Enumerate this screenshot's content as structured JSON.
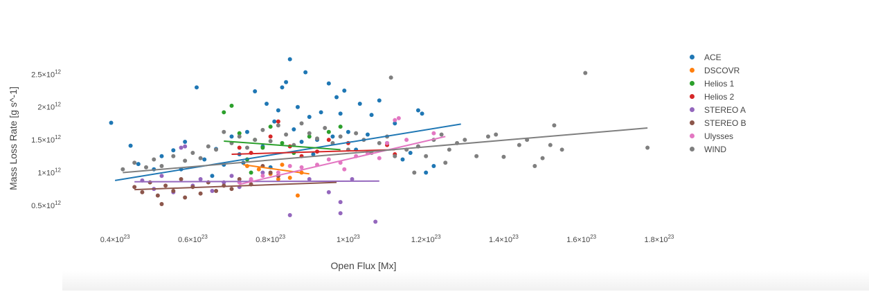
{
  "chart_data": {
    "type": "scatter",
    "xlabel": "Open Flux [Mx]",
    "ylabel": "Mass Loss Rate [g s^-1]",
    "xlim": [
      0.3,
      1.85
    ],
    "ylim": [
      0.15,
      3.0
    ],
    "x_ticks": [
      {
        "value": 0.4,
        "mantissa": "0.4",
        "label": "0.4×10^23"
      },
      {
        "value": 0.6,
        "mantissa": "0.6",
        "label": "0.6×10^23"
      },
      {
        "value": 0.8,
        "mantissa": "0.8",
        "label": "0.8×10^23"
      },
      {
        "value": 1.0,
        "mantissa": "1",
        "label": "1×10^23"
      },
      {
        "value": 1.2,
        "mantissa": "1.2",
        "label": "1.2×10^23"
      },
      {
        "value": 1.4,
        "mantissa": "1.4",
        "label": "1.4×10^23"
      },
      {
        "value": 1.6,
        "mantissa": "1.6",
        "label": "1.6×10^23"
      },
      {
        "value": 1.8,
        "mantissa": "1.8",
        "label": "1.8×10^23"
      }
    ],
    "x_exponent": "23",
    "y_ticks": [
      {
        "value": 0.5,
        "mantissa": "0.5",
        "label": "0.5×10^12"
      },
      {
        "value": 1.0,
        "mantissa": "1",
        "label": "1×10^12"
      },
      {
        "value": 1.5,
        "mantissa": "1.5",
        "label": "1.5×10^12"
      },
      {
        "value": 2.0,
        "mantissa": "2",
        "label": "2×10^12"
      },
      {
        "value": 2.5,
        "mantissa": "2.5",
        "label": "2.5×10^12"
      }
    ],
    "y_exponent": "12",
    "series": [
      {
        "name": "ACE",
        "color": "#1f77b4",
        "fit": [
          [
            0.4,
            0.88
          ],
          [
            1.29,
            1.74
          ]
        ],
        "points": [
          [
            0.39,
            1.76
          ],
          [
            0.44,
            1.41
          ],
          [
            0.46,
            1.13
          ],
          [
            0.5,
            1.05
          ],
          [
            0.52,
            1.25
          ],
          [
            0.55,
            1.34
          ],
          [
            0.58,
            1.47
          ],
          [
            0.61,
            2.3
          ],
          [
            0.63,
            1.2
          ],
          [
            0.66,
            1.36
          ],
          [
            0.68,
            1.12
          ],
          [
            0.7,
            1.55
          ],
          [
            0.72,
            1.28
          ],
          [
            0.74,
            1.62
          ],
          [
            0.76,
            2.24
          ],
          [
            0.78,
            1.4
          ],
          [
            0.79,
            2.05
          ],
          [
            0.81,
            1.78
          ],
          [
            0.82,
            1.95
          ],
          [
            0.83,
            2.3
          ],
          [
            0.84,
            2.38
          ],
          [
            0.85,
            2.73
          ],
          [
            0.86,
            1.66
          ],
          [
            0.87,
            2.0
          ],
          [
            0.88,
            1.47
          ],
          [
            0.89,
            2.53
          ],
          [
            0.9,
            1.85
          ],
          [
            0.91,
            1.28
          ],
          [
            0.93,
            1.92
          ],
          [
            0.95,
            2.36
          ],
          [
            0.96,
            1.55
          ],
          [
            0.97,
            2.15
          ],
          [
            0.98,
            1.9
          ],
          [
            0.99,
            2.25
          ],
          [
            1.0,
            1.62
          ],
          [
            1.02,
            1.35
          ],
          [
            1.03,
            2.05
          ],
          [
            1.05,
            1.58
          ],
          [
            1.06,
            1.88
          ],
          [
            1.08,
            2.1
          ],
          [
            1.1,
            1.45
          ],
          [
            1.12,
            1.75
          ],
          [
            1.14,
            1.2
          ],
          [
            1.16,
            1.3
          ],
          [
            1.18,
            1.95
          ],
          [
            1.19,
            1.9
          ],
          [
            1.2,
            1.0
          ],
          [
            1.22,
            1.1
          ],
          [
            0.57,
            1.05
          ],
          [
            0.65,
            0.95
          ],
          [
            0.73,
            1.15
          ],
          [
            0.8,
            1.08
          ],
          [
            0.92,
            1.5
          ]
        ]
      },
      {
        "name": "DSCOVR",
        "color": "#ff7f0e",
        "fit": [
          [
            0.73,
            1.12
          ],
          [
            0.9,
            0.98
          ]
        ],
        "points": [
          [
            0.74,
            1.1
          ],
          [
            0.77,
            1.05
          ],
          [
            0.8,
            0.98
          ],
          [
            0.83,
            1.12
          ],
          [
            0.85,
            0.92
          ],
          [
            0.87,
            0.65
          ],
          [
            0.88,
            1.0
          ],
          [
            0.82,
            0.9
          ]
        ]
      },
      {
        "name": "Helios 1",
        "color": "#2ca02c",
        "fit": [
          [
            0.68,
            1.48
          ],
          [
            0.98,
            1.35
          ]
        ],
        "points": [
          [
            0.68,
            1.92
          ],
          [
            0.7,
            2.02
          ],
          [
            0.72,
            1.6
          ],
          [
            0.74,
            1.2
          ],
          [
            0.76,
            1.5
          ],
          [
            0.78,
            1.38
          ],
          [
            0.8,
            1.7
          ],
          [
            0.83,
            1.45
          ],
          [
            0.86,
            1.3
          ],
          [
            0.9,
            1.55
          ],
          [
            0.95,
            1.62
          ],
          [
            0.98,
            1.7
          ],
          [
            0.75,
            1.0
          ]
        ]
      },
      {
        "name": "Helios 2",
        "color": "#d62728",
        "fit": [
          [
            0.7,
            1.28
          ],
          [
            1.12,
            1.35
          ]
        ],
        "points": [
          [
            0.72,
            1.38
          ],
          [
            0.75,
            1.3
          ],
          [
            0.8,
            1.55
          ],
          [
            0.82,
            1.78
          ],
          [
            0.85,
            1.4
          ],
          [
            0.88,
            1.25
          ],
          [
            0.92,
            1.32
          ],
          [
            0.95,
            1.5
          ],
          [
            1.0,
            1.45
          ],
          [
            1.05,
            1.3
          ],
          [
            1.1,
            1.42
          ],
          [
            1.12,
            1.28
          ]
        ]
      },
      {
        "name": "STEREO A",
        "color": "#9467bd",
        "fit": [
          [
            0.45,
            0.86
          ],
          [
            1.08,
            0.87
          ]
        ],
        "points": [
          [
            0.47,
            0.88
          ],
          [
            0.5,
            0.75
          ],
          [
            0.52,
            0.95
          ],
          [
            0.55,
            0.7
          ],
          [
            0.57,
            1.38
          ],
          [
            0.58,
            1.4
          ],
          [
            0.6,
            0.8
          ],
          [
            0.62,
            0.9
          ],
          [
            0.65,
            0.72
          ],
          [
            0.68,
            0.85
          ],
          [
            0.7,
            0.95
          ],
          [
            0.72,
            0.78
          ],
          [
            0.75,
            0.88
          ],
          [
            0.78,
            1.0
          ],
          [
            0.82,
            0.95
          ],
          [
            0.85,
            0.35
          ],
          [
            0.9,
            0.9
          ],
          [
            0.95,
            0.7
          ],
          [
            0.98,
            0.55
          ],
          [
            0.98,
            0.38
          ],
          [
            1.01,
            0.9
          ],
          [
            1.07,
            0.25
          ]
        ]
      },
      {
        "name": "STEREO B",
        "color": "#8c564b",
        "fit": [
          [
            0.45,
            0.74
          ],
          [
            0.97,
            0.85
          ]
        ],
        "points": [
          [
            0.45,
            0.78
          ],
          [
            0.47,
            0.7
          ],
          [
            0.49,
            0.85
          ],
          [
            0.51,
            0.65
          ],
          [
            0.52,
            0.52
          ],
          [
            0.53,
            0.8
          ],
          [
            0.55,
            0.72
          ],
          [
            0.57,
            0.9
          ],
          [
            0.58,
            0.62
          ],
          [
            0.6,
            0.78
          ],
          [
            0.62,
            0.68
          ],
          [
            0.64,
            0.85
          ],
          [
            0.66,
            0.72
          ],
          [
            0.68,
            0.8
          ],
          [
            0.7,
            0.75
          ],
          [
            0.72,
            0.9
          ],
          [
            0.75,
            0.82
          ],
          [
            0.78,
            1.1
          ],
          [
            0.8,
            1.0
          ],
          [
            0.82,
            0.95
          ]
        ]
      },
      {
        "name": "Ulysses",
        "color": "#e377c2",
        "fit": [
          [
            0.72,
            0.82
          ],
          [
            1.25,
            1.55
          ]
        ],
        "points": [
          [
            0.72,
            0.85
          ],
          [
            0.75,
            0.9
          ],
          [
            0.78,
            0.95
          ],
          [
            0.82,
            1.0
          ],
          [
            0.85,
            1.1
          ],
          [
            0.88,
            1.08
          ],
          [
            0.92,
            1.12
          ],
          [
            0.95,
            1.2
          ],
          [
            0.98,
            1.15
          ],
          [
            1.02,
            1.25
          ],
          [
            1.05,
            1.3
          ],
          [
            1.08,
            1.22
          ],
          [
            1.1,
            1.45
          ],
          [
            1.12,
            1.8
          ],
          [
            1.13,
            1.83
          ],
          [
            1.15,
            1.5
          ],
          [
            1.18,
            1.4
          ],
          [
            1.22,
            1.6
          ],
          [
            0.99,
            1.05
          ]
        ]
      },
      {
        "name": "WIND",
        "color": "#7f7f7f",
        "fit": [
          [
            0.42,
            1.0
          ],
          [
            1.77,
            1.68
          ]
        ],
        "points": [
          [
            0.42,
            1.05
          ],
          [
            0.45,
            1.15
          ],
          [
            0.48,
            1.08
          ],
          [
            0.5,
            1.2
          ],
          [
            0.52,
            1.1
          ],
          [
            0.55,
            1.25
          ],
          [
            0.58,
            1.18
          ],
          [
            0.6,
            1.3
          ],
          [
            0.62,
            1.22
          ],
          [
            0.64,
            1.4
          ],
          [
            0.66,
            1.35
          ],
          [
            0.68,
            1.62
          ],
          [
            0.7,
            1.45
          ],
          [
            0.72,
            1.55
          ],
          [
            0.74,
            1.38
          ],
          [
            0.76,
            1.5
          ],
          [
            0.78,
            1.65
          ],
          [
            0.8,
            1.48
          ],
          [
            0.82,
            1.72
          ],
          [
            0.84,
            1.58
          ],
          [
            0.86,
            1.42
          ],
          [
            0.88,
            1.75
          ],
          [
            0.9,
            1.6
          ],
          [
            0.92,
            1.52
          ],
          [
            0.94,
            1.68
          ],
          [
            0.96,
            1.45
          ],
          [
            0.98,
            1.55
          ],
          [
            1.0,
            1.35
          ],
          [
            1.02,
            1.6
          ],
          [
            1.04,
            1.5
          ],
          [
            1.06,
            1.3
          ],
          [
            1.08,
            1.45
          ],
          [
            1.1,
            1.55
          ],
          [
            1.11,
            2.45
          ],
          [
            1.12,
            1.25
          ],
          [
            1.15,
            1.35
          ],
          [
            1.18,
            1.4
          ],
          [
            1.2,
            1.25
          ],
          [
            1.22,
            1.5
          ],
          [
            1.24,
            1.58
          ],
          [
            1.26,
            1.35
          ],
          [
            1.28,
            1.45
          ],
          [
            1.3,
            1.5
          ],
          [
            1.33,
            1.25
          ],
          [
            1.36,
            1.55
          ],
          [
            1.38,
            1.58
          ],
          [
            1.4,
            1.24
          ],
          [
            1.44,
            1.42
          ],
          [
            1.48,
            1.1
          ],
          [
            1.5,
            1.22
          ],
          [
            1.53,
            1.72
          ],
          [
            1.55,
            1.35
          ],
          [
            1.61,
            2.52
          ],
          [
            1.77,
            1.38
          ],
          [
            1.52,
            1.42
          ],
          [
            1.46,
            1.5
          ],
          [
            1.25,
            1.15
          ],
          [
            1.17,
            1.0
          ]
        ]
      }
    ]
  }
}
